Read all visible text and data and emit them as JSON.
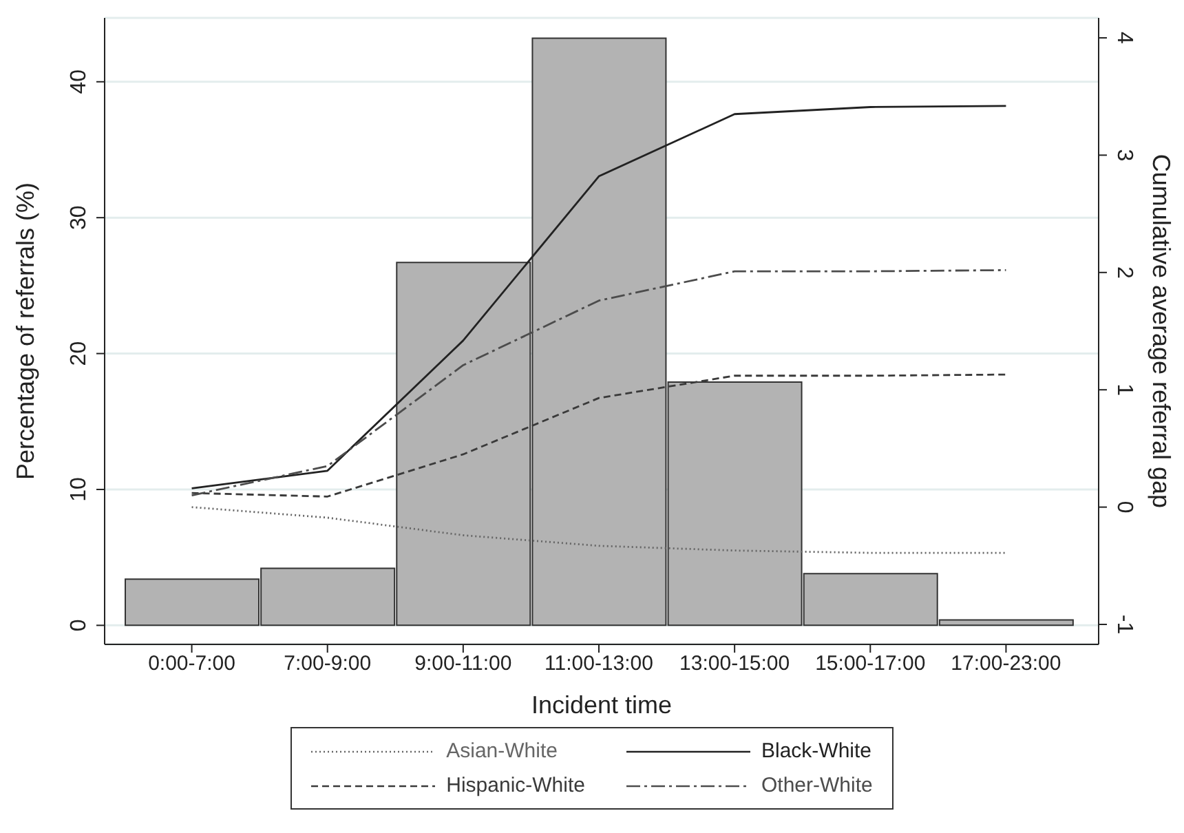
{
  "chart_data": {
    "type": "bar",
    "xlabel": "Incident time",
    "ylabel": "Percentage of referrals (%)",
    "y2label": "Cumulative average referral gap",
    "categories": [
      "0:00-7:00",
      "7:00-9:00",
      "9:00-11:00",
      "11:00-13:00",
      "13:00-15:00",
      "15:00-17:00",
      "17:00-23:00"
    ],
    "series": [
      {
        "type": "bar",
        "color": "#b3b3b3",
        "values": [
          3.4,
          4.2,
          26.7,
          43.2,
          17.9,
          3.8,
          0.4
        ]
      },
      {
        "type": "line",
        "name": "Asian-White",
        "color": "#666666",
        "axis": "y2",
        "line_style": "dotted",
        "values": [
          0.0,
          -0.09,
          -0.24,
          -0.33,
          -0.37,
          -0.39,
          -0.39
        ]
      },
      {
        "type": "line",
        "name": "Black-White",
        "color": "#222222",
        "axis": "y2",
        "line_style": "solid",
        "values": [
          0.16,
          0.31,
          1.42,
          2.82,
          3.35,
          3.41,
          3.42
        ]
      },
      {
        "type": "line",
        "name": "Hispanic-White",
        "color": "#3a3a3a",
        "axis": "y2",
        "line_style": "dashed",
        "values": [
          0.12,
          0.09,
          0.45,
          0.93,
          1.12,
          1.12,
          1.13
        ]
      },
      {
        "type": "line",
        "name": "Other-White",
        "color": "#4c4c4c",
        "axis": "y2",
        "line_style": "dashdot",
        "values": [
          0.1,
          0.35,
          1.21,
          1.76,
          2.01,
          2.01,
          2.02
        ]
      }
    ],
    "ylim": [
      -1.4,
      44.7
    ],
    "yticks": [
      0,
      10,
      20,
      30,
      40
    ],
    "y2lim": [
      -1.17,
      4.17
    ],
    "y2ticks": [
      -1,
      0,
      1,
      2,
      3,
      4
    ],
    "grid": "y",
    "legend": "bottom",
    "marker": "none"
  }
}
